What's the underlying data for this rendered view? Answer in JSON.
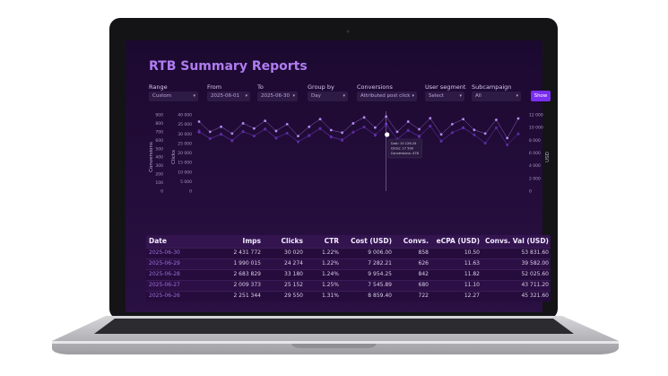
{
  "title": "RTB Summary Reports",
  "filters": [
    {
      "label": "Range",
      "value": "Custom"
    },
    {
      "label": "From",
      "value": "2025-06-01"
    },
    {
      "label": "To",
      "value": "2025-06-30"
    },
    {
      "label": "Group by",
      "value": "Day"
    },
    {
      "label": "Conversions",
      "value": "Attributed post click"
    },
    {
      "label": "User segment",
      "value": "Select"
    },
    {
      "label": "Subcampaign",
      "value": "All"
    }
  ],
  "button": "Show",
  "chart": {
    "type": "line",
    "axes": [
      {
        "label": "Conversions",
        "lim": [
          0,
          900
        ],
        "ticks": [
          900,
          800,
          700,
          600,
          500,
          400,
          300,
          200,
          100,
          0
        ]
      },
      {
        "label": "Clicks",
        "lim": [
          0,
          40000
        ],
        "ticks": [
          {
            "value": 40000,
            "label": "40 000"
          },
          {
            "value": 35000,
            "label": "35 000"
          },
          {
            "value": 30000,
            "label": "30 000"
          },
          {
            "value": 25000,
            "label": "25 000"
          },
          {
            "value": 20000,
            "label": "20 000"
          },
          {
            "value": 15000,
            "label": "15 000"
          },
          {
            "value": 10000,
            "label": "10 000"
          },
          {
            "value": 5000,
            "label": "5 000"
          },
          0
        ]
      },
      {
        "label": "USD",
        "lim": [
          0,
          12000
        ],
        "ticks": [
          {
            "value": 12000,
            "label": "12 000"
          },
          {
            "value": 10000,
            "label": "10 000"
          },
          {
            "value": 8000,
            "label": "8 000"
          },
          {
            "value": 6000,
            "label": "6 000"
          },
          {
            "value": 4000,
            "label": "4 000"
          },
          {
            "value": 2000,
            "label": "2 000"
          },
          0
        ]
      }
    ],
    "series": [
      {
        "axis": 1,
        "color": "#7c3fd6",
        "values": [
          31000,
          27500,
          29800,
          26400,
          31200,
          28900,
          32500,
          27800,
          30400,
          25900,
          29100,
          32800,
          28400,
          26700,
          30900,
          33600,
          29300,
          35200,
          27100,
          31800,
          28600,
          34100,
          26200,
          30700,
          33300,
          29550,
          25152,
          33180,
          24274,
          30020
        ]
      },
      {
        "axis": 0,
        "color": "#b58af5",
        "values": [
          820,
          700,
          760,
          680,
          800,
          740,
          830,
          710,
          790,
          650,
          760,
          850,
          720,
          690,
          800,
          870,
          750,
          880,
          700,
          820,
          730,
          860,
          670,
          790,
          850,
          722,
          680,
          842,
          626,
          858
        ]
      },
      {
        "axis": 2,
        "color": "#5a2ca0",
        "values": [
          9500,
          8300,
          9000,
          8000,
          9400,
          8700,
          9800,
          8400,
          9100,
          7800,
          8800,
          9900,
          8600,
          8100,
          9300,
          10100,
          8900,
          10300,
          8200,
          9600,
          8700,
          10200,
          7900,
          9200,
          9900,
          8859.4,
          7545.89,
          9954.25,
          7282.21,
          9006
        ]
      }
    ],
    "tooltip": [
      "Cost: 10 126.24",
      "Clicks: 17 500",
      "Conversions: 476"
    ]
  },
  "table": {
    "columns": [
      "Date",
      "Imps",
      "Clicks",
      "CTR",
      "Cost (USD)",
      "Convs.",
      "eCPA (USD)",
      "Convs. Val (USD)"
    ],
    "rows": [
      [
        "2025-06-30",
        "2 431 772",
        "30 020",
        "1.22%",
        "9 006.00",
        "858",
        "10.50",
        "53 831.60"
      ],
      [
        "2025-06-29",
        "1 990 015",
        "24 274",
        "1.22%",
        "7 282.21",
        "626",
        "11.63",
        "39 582.00"
      ],
      [
        "2025-06-28",
        "2 683 829",
        "33 180",
        "1.24%",
        "9 954.25",
        "842",
        "11.82",
        "52 025.60"
      ],
      [
        "2025-06-27",
        "2 009 373",
        "25 152",
        "1.25%",
        "7 545.89",
        "680",
        "11.10",
        "43 711.20"
      ],
      [
        "2025-06-26",
        "2 251 344",
        "29 550",
        "1.31%",
        "8 859.40",
        "722",
        "12.27",
        "45 321.60"
      ]
    ]
  }
}
